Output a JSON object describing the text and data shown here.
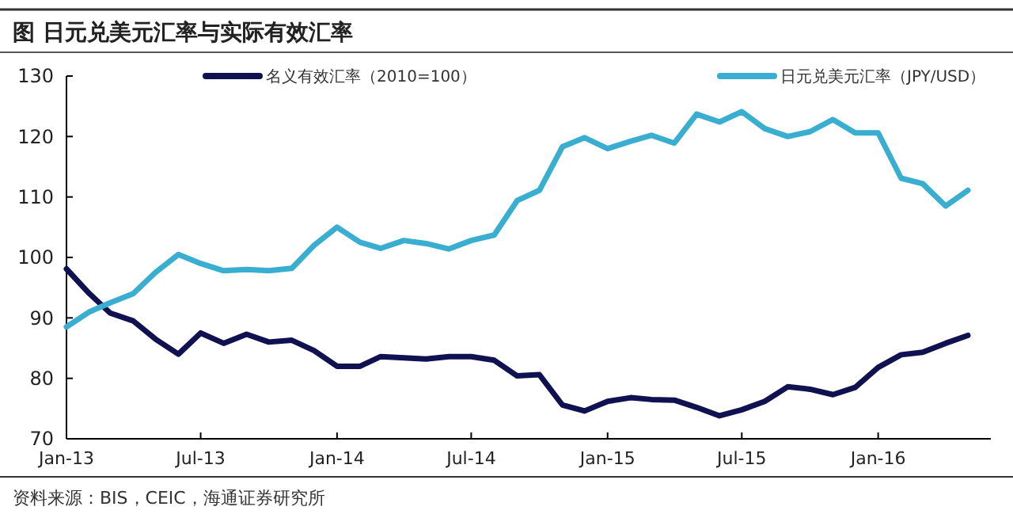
{
  "chart_data": {
    "type": "line",
    "title": "图  日元兑美元汇率与实际有效汇率",
    "annotations": [
      "资料来源：BIS，CEIC，海通证券研究所"
    ],
    "x": [
      "2013-01",
      "2013-02",
      "2013-03",
      "2013-04",
      "2013-05",
      "2013-06",
      "2013-07",
      "2013-08",
      "2013-09",
      "2013-10",
      "2013-11",
      "2013-12",
      "2014-01",
      "2014-02",
      "2014-03",
      "2014-04",
      "2014-05",
      "2014-06",
      "2014-07",
      "2014-08",
      "2014-09",
      "2014-10",
      "2014-11",
      "2014-12",
      "2015-01",
      "2015-02",
      "2015-03",
      "2015-04",
      "2015-05",
      "2015-06",
      "2015-07",
      "2015-08",
      "2015-09",
      "2015-10",
      "2015-11",
      "2015-12",
      "2016-01",
      "2016-02",
      "2016-03",
      "2016-04",
      "2016-05"
    ],
    "series": [
      {
        "name": "名义有效汇率（2010=100）",
        "color": "#0f1150",
        "values": [
          98.1,
          94,
          90.8,
          89.5,
          86.5,
          84,
          87.5,
          85.8,
          87.3,
          86,
          86.3,
          84.6,
          82,
          82,
          83.6,
          83.4,
          83.2,
          83.6,
          83.6,
          83,
          80.4,
          80.6,
          75.6,
          74.6,
          76.2,
          76.8,
          76.5,
          76.4,
          75.2,
          73.8,
          74.8,
          76.2,
          78.6,
          78.2,
          77.3,
          78.5,
          81.8,
          83.9,
          84.3,
          85.8,
          87.1
        ]
      },
      {
        "name": "日元兑美元汇率（JPY/USD）",
        "color": "#3aaed0",
        "values": [
          88.5,
          91,
          92.5,
          94,
          97.5,
          100.5,
          99,
          97.8,
          98,
          97.8,
          98.2,
          102,
          105,
          102.5,
          101.5,
          102.8,
          102.3,
          101.4,
          102.8,
          103.7,
          109.4,
          111.1,
          118.3,
          119.8,
          118,
          119.2,
          120.2,
          118.9,
          123.7,
          122.4,
          124.1,
          121.3,
          120,
          120.8,
          122.8,
          120.6,
          120.6,
          113.1,
          112.2,
          108.5,
          111.1
        ]
      }
    ],
    "xlim": [
      "2013-01",
      "2016-06"
    ],
    "xticks": [
      {
        "value": "2013-01",
        "label": "Jan-13"
      },
      {
        "value": "2013-07",
        "label": "Jul-13"
      },
      {
        "value": "2014-01",
        "label": "Jan-14"
      },
      {
        "value": "2014-07",
        "label": "Jul-14"
      },
      {
        "value": "2015-01",
        "label": "Jan-15"
      },
      {
        "value": "2015-07",
        "label": "Jul-15"
      },
      {
        "value": "2016-01",
        "label": "Jan-16"
      }
    ],
    "ylim": [
      70,
      130
    ],
    "yticks": [
      70,
      80,
      90,
      100,
      110,
      120,
      130
    ],
    "grid": false,
    "legend": "top",
    "marker": "none",
    "line_style": "solid"
  }
}
